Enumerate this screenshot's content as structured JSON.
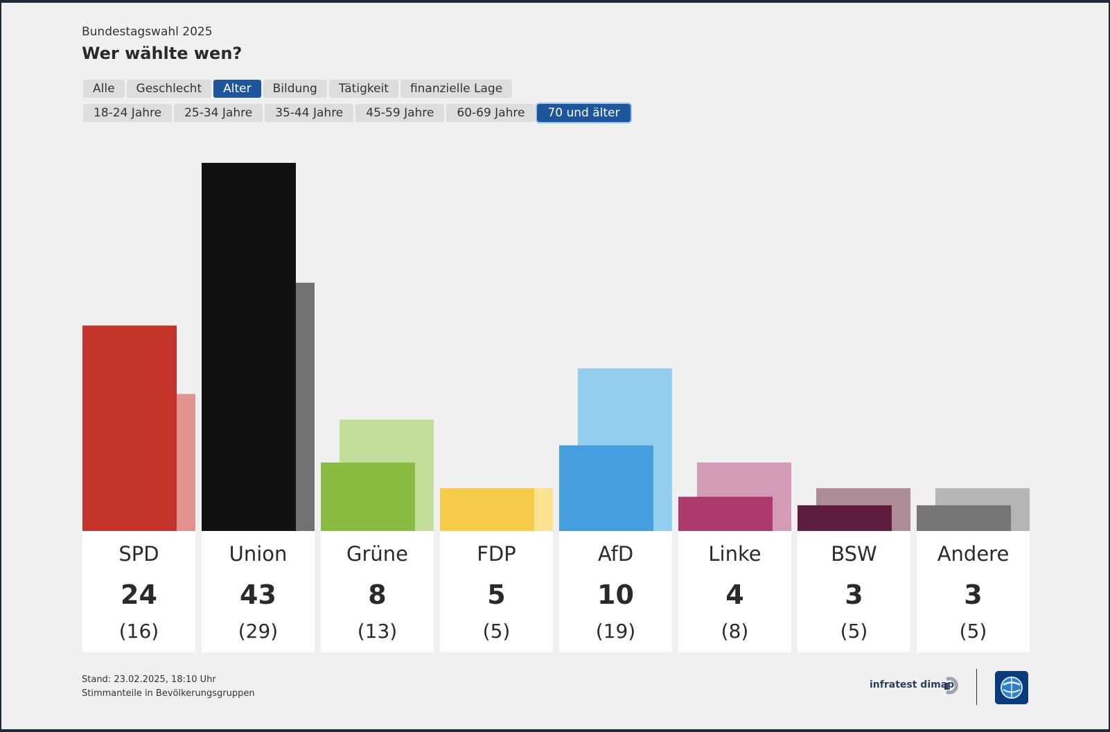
{
  "header": {
    "subtitle": "Bundestagswahl 2025",
    "title": "Wer wählte wen?"
  },
  "tabs_category": [
    {
      "label": "Alle",
      "active": false
    },
    {
      "label": "Geschlecht",
      "active": false
    },
    {
      "label": "Alter",
      "active": true
    },
    {
      "label": "Bildung",
      "active": false
    },
    {
      "label": "Tätigkeit",
      "active": false
    },
    {
      "label": "finanzielle Lage",
      "active": false
    }
  ],
  "tabs_age": [
    {
      "label": "18-24 Jahre",
      "active": false
    },
    {
      "label": "25-34 Jahre",
      "active": false
    },
    {
      "label": "35-44 Jahre",
      "active": false
    },
    {
      "label": "45-59 Jahre",
      "active": false
    },
    {
      "label": "60-69 Jahre",
      "active": false
    },
    {
      "label": "70 und älter",
      "active": true
    }
  ],
  "chart_data": {
    "type": "bar",
    "categories": [
      "SPD",
      "Union",
      "Grüne",
      "FDP",
      "AfD",
      "Linke",
      "BSW",
      "Andere"
    ],
    "series": [
      {
        "values": [
          24,
          43,
          8,
          5,
          10,
          4,
          3,
          3
        ]
      },
      {
        "values": [
          16,
          29,
          13,
          5,
          19,
          8,
          5,
          5
        ]
      }
    ],
    "display_values": [
      "24",
      "43",
      "8",
      "5",
      "10",
      "4",
      "3",
      "3"
    ],
    "display_previous": [
      "(16)",
      "(29)",
      "(13)",
      "(5)",
      "(19)",
      "(8)",
      "(5)",
      "(5)"
    ],
    "colors_primary": [
      "#c4342a",
      "#111111",
      "#88bb40",
      "#f5cb48",
      "#459edd",
      "#ac3a6e",
      "#5f1e3f",
      "#767676"
    ],
    "colors_secondary": [
      "#e0938e",
      "#737270",
      "#c3dd9a",
      "#f9e390",
      "#94ceee",
      "#d39bb8",
      "#ad8c98",
      "#b5b5b5"
    ],
    "grid": false
  },
  "footer": {
    "stand": "Stand: 23.02.2025, 18:10 Uhr",
    "note": "Stimmanteile in Bevölkerungsgruppen",
    "brand": "infratest dimap"
  }
}
